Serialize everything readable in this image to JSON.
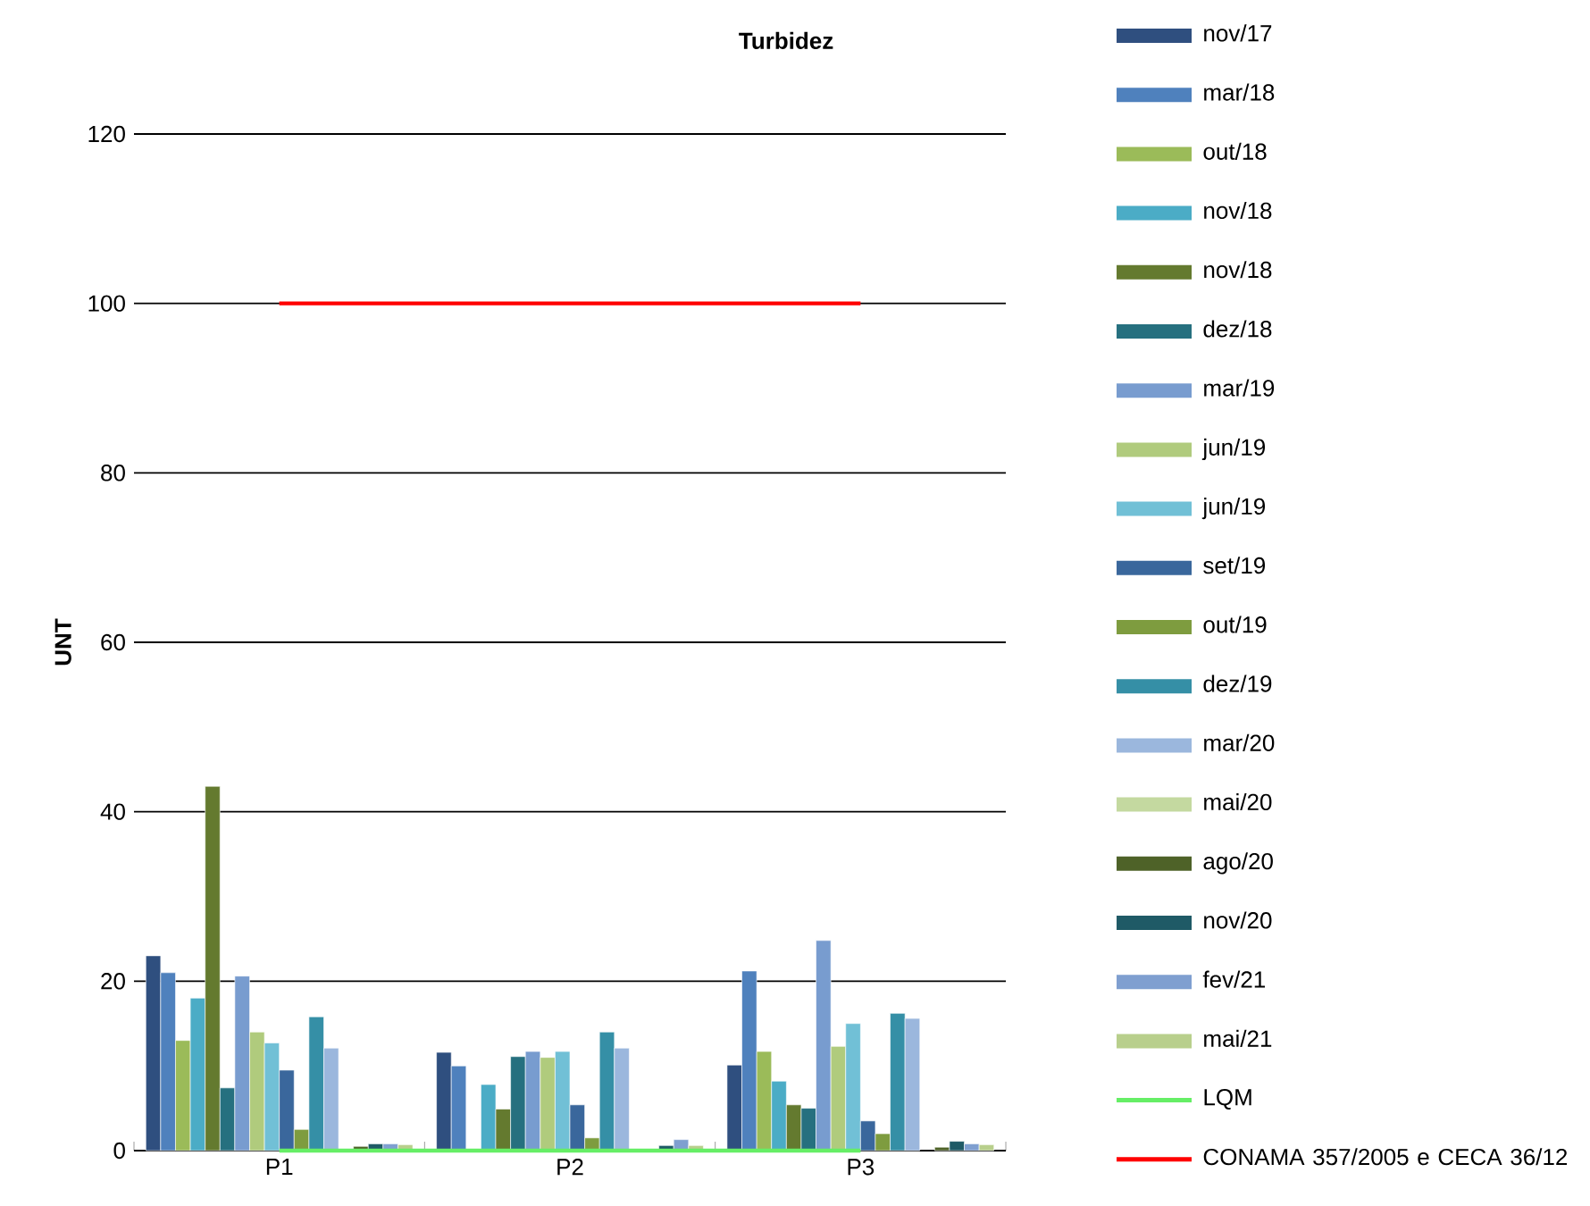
{
  "chart_data": {
    "type": "bar",
    "title": "Turbidez",
    "ylabel": "UNT",
    "categories": [
      "P1",
      "P2",
      "P3"
    ],
    "ylim": [
      0,
      120
    ],
    "yticks": [
      0,
      20,
      40,
      60,
      80,
      100,
      120
    ],
    "grid": "y",
    "legend": "right",
    "series": [
      {
        "name": "nov/17",
        "color": "#2f4f7f",
        "values": [
          23,
          11.6,
          10.1
        ]
      },
      {
        "name": "mar/18",
        "color": "#4f81bd",
        "values": [
          21,
          10,
          21.2
        ]
      },
      {
        "name": "out/18",
        "color": "#9bbb59",
        "values": [
          13,
          null,
          11.7
        ]
      },
      {
        "name": "nov/18",
        "color": "#4bacc6",
        "values": [
          18,
          7.8,
          8.2
        ]
      },
      {
        "name": "nov/18",
        "color": "#647a2f",
        "values": [
          43,
          4.9,
          5.4
        ]
      },
      {
        "name": "dez/18",
        "color": "#26707f",
        "values": [
          7.4,
          11.1,
          5
        ]
      },
      {
        "name": "mar/19",
        "color": "#789ccf",
        "values": [
          20.6,
          11.7,
          24.8
        ]
      },
      {
        "name": "jun/19",
        "color": "#b0cb7d",
        "values": [
          14,
          11,
          12.3
        ]
      },
      {
        "name": "jun/19",
        "color": "#71c0d6",
        "values": [
          12.7,
          11.7,
          15
        ]
      },
      {
        "name": "set/19",
        "color": "#3a679c",
        "values": [
          9.5,
          5.4,
          3.5
        ]
      },
      {
        "name": "out/19",
        "color": "#7e9c3f",
        "values": [
          2.5,
          1.5,
          2
        ]
      },
      {
        "name": "dez/19",
        "color": "#358fa6",
        "values": [
          15.8,
          14,
          16.2
        ]
      },
      {
        "name": "mar/20",
        "color": "#9bb7dd",
        "values": [
          12.1,
          12.1,
          15.6
        ]
      },
      {
        "name": "mai/20",
        "color": "#c4d9a0",
        "values": [
          null,
          null,
          null
        ]
      },
      {
        "name": "ago/20",
        "color": "#4e6228",
        "values": [
          0.5,
          null,
          0.4
        ]
      },
      {
        "name": "nov/20",
        "color": "#1f5a66",
        "values": [
          0.8,
          0.6,
          1.1
        ]
      },
      {
        "name": "fev/21",
        "color": "#7f9fd0",
        "values": [
          0.8,
          1.3,
          0.8
        ]
      },
      {
        "name": "mai/21",
        "color": "#b8cf8c",
        "values": [
          0.7,
          0.6,
          0.7
        ]
      },
      {
        "name": "LQM",
        "type": "line",
        "color": "#66ee66",
        "values": [
          0,
          0,
          0
        ]
      },
      {
        "name": "CONAMA 357/2005 e CECA 36/12",
        "type": "line",
        "color": "#ff0000",
        "values": [
          100,
          100,
          100
        ]
      }
    ]
  }
}
